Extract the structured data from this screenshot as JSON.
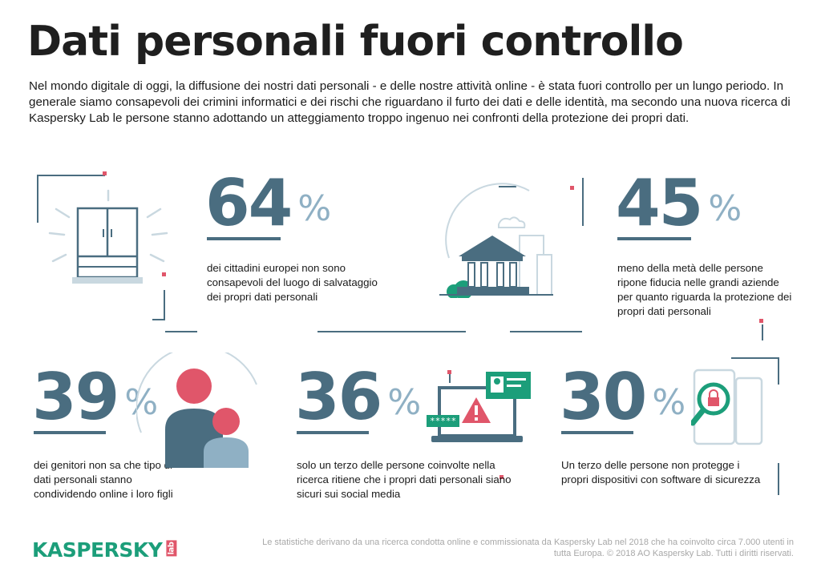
{
  "title": "Dati personali fuori controllo",
  "intro": "Nel mondo digitale di oggi, la diffusione dei nostri dati personali - e delle nostre attività online - è stata fuori controllo per un lungo periodo. In generale siamo consapevoli dei crimini informatici e dei rischi che riguardano il furto dei dati e delle identità, ma secondo una nuova ricerca di Kaspersky Lab le persone stanno adottando un atteggiamento troppo ingenuo nei confronti della protezione dei propri dati.",
  "colors": {
    "number": "#4a6d80",
    "percent": "#8fb0c4",
    "accent_red": "#e0566a",
    "brand_green": "#1c9e7a",
    "illustration_light": "#c9d8e0"
  },
  "stats": [
    {
      "value": "64",
      "unit": "%",
      "text": "dei cittadini europei non sono consapevoli del luogo di salvataggio dei propri dati personali",
      "icon": "wardrobe-icon"
    },
    {
      "value": "45",
      "unit": "%",
      "text": "meno della metà delle persone ripone fiducia nelle grandi aziende per quanto riguarda la protezione dei propri dati personali",
      "icon": "bank-building-icon"
    },
    {
      "value": "39",
      "unit": "%",
      "text": "dei genitori non sa che tipo di dati personali stanno condividendo online i loro figli",
      "icon": "parent-child-icon"
    },
    {
      "value": "36",
      "unit": "%",
      "text": "solo un terzo delle persone coinvolte nella ricerca ritiene che i propri dati personali siano sicuri sui social media",
      "icon": "laptop-warning-icon"
    },
    {
      "value": "30",
      "unit": "%",
      "text": "Un terzo delle persone non protegge i propri dispositivi con software di sicurezza",
      "icon": "phone-magnifier-icon"
    }
  ],
  "password_mask": "*****",
  "logo": {
    "text": "KASPERSKY",
    "suffix": "lab"
  },
  "footer": "Le statistiche derivano da una ricerca condotta online e commissionata da Kaspersky Lab nel 2018 che ha coinvolto circa 7.000 utenti in tutta Europa. © 2018 AO Kaspersky Lab. Tutti i diritti riservati."
}
